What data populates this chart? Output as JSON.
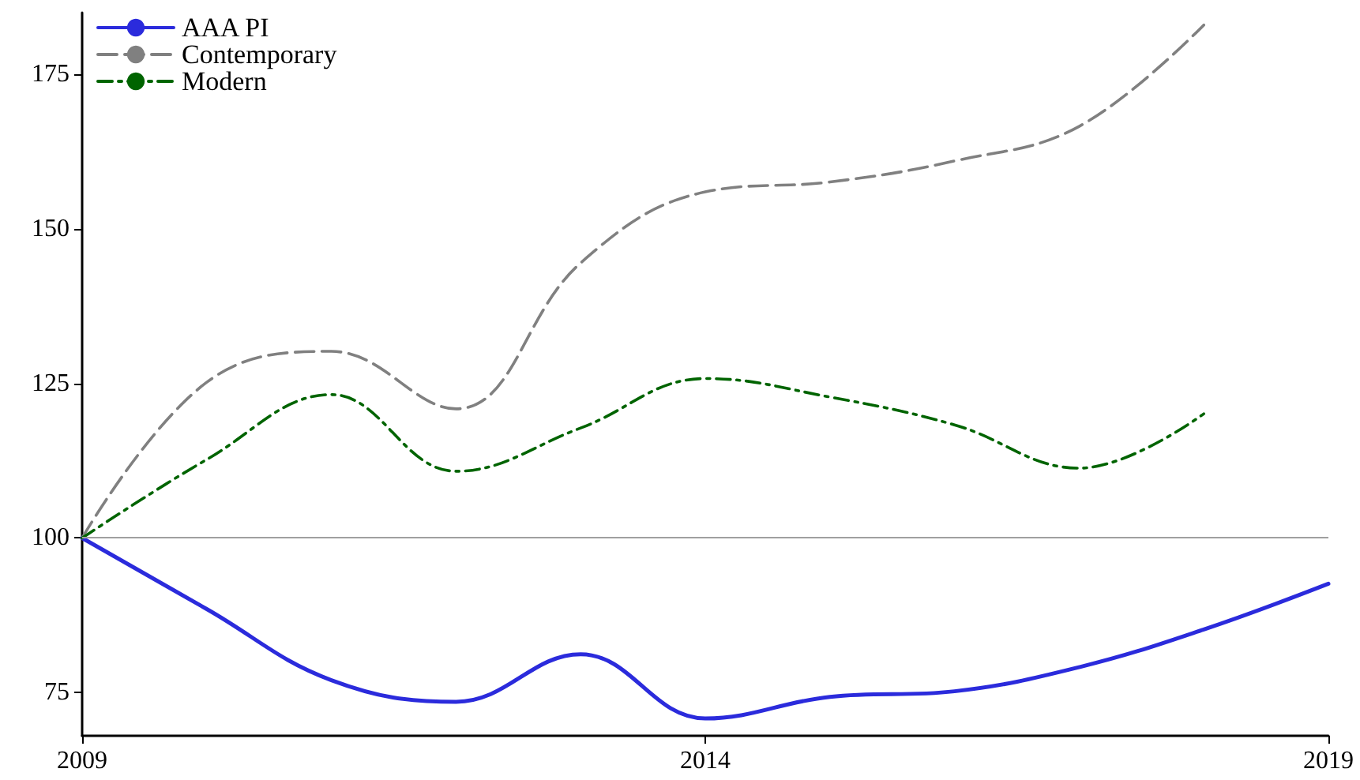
{
  "chart_data": {
    "type": "line",
    "x": [
      2009,
      2010,
      2011,
      2012,
      2013,
      2014,
      2015,
      2016,
      2017,
      2018,
      2019
    ],
    "series": [
      {
        "name": "AAA PI",
        "color": "#2b2bdc",
        "line_style": "solid",
        "values": [
          100,
          88.5,
          77,
          73.5,
          81.2,
          70.8,
          74.3,
          75.2,
          79.1,
          85.2,
          92.6
        ]
      },
      {
        "name": "Contemporary",
        "color": "#808080",
        "line_style": "dashed",
        "values": [
          100,
          125.2,
          130.2,
          120.9,
          144.5,
          156,
          157.6,
          161,
          166.6,
          183,
          null
        ]
      },
      {
        "name": "Modern",
        "color": "#006400",
        "line_style": "dashdot",
        "values": [
          100,
          112.7,
          123.2,
          110.8,
          117.8,
          125.8,
          122.8,
          118.3,
          111.3,
          120.1,
          null
        ]
      }
    ],
    "xlim": [
      2009,
      2019
    ],
    "xticks": [
      2009,
      2014,
      2019
    ],
    "ylim": [
      68,
      185
    ],
    "yticks": [
      75,
      100,
      125,
      150,
      175
    ],
    "ref_lines": [
      {
        "axis": "y",
        "value": 100,
        "color": "#a0a0a0"
      }
    ],
    "grid": false,
    "legend": "top left",
    "marker": "none"
  }
}
